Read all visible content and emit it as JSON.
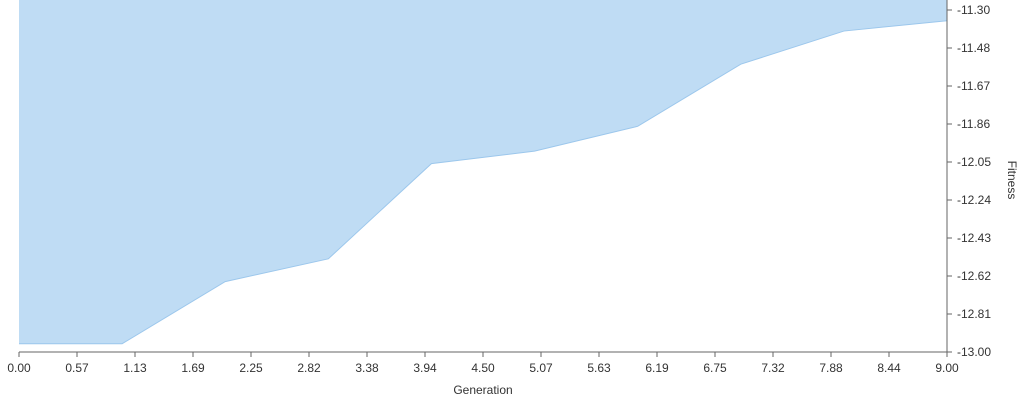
{
  "chart_data": {
    "type": "area",
    "xlabel": "Generation",
    "ylabel": "Fitness",
    "xlim": [
      0,
      9
    ],
    "ylim": [
      -13.0,
      -11.3
    ],
    "y_axis_side": "right",
    "grid": false,
    "fill_direction": "above-line",
    "colors": {
      "fill": "#bfdcf4",
      "stroke": "#9cc7ec",
      "axis": "#666666",
      "text": "#333333"
    },
    "x_ticks": [
      "0.00",
      "0.57",
      "1.13",
      "1.69",
      "2.25",
      "2.82",
      "3.38",
      "3.94",
      "4.50",
      "5.07",
      "5.63",
      "6.19",
      "6.75",
      "7.32",
      "7.88",
      "8.44",
      "9.00"
    ],
    "y_ticks": [
      "-11.30",
      "-11.48",
      "-11.67",
      "-11.86",
      "-12.05",
      "-12.24",
      "-12.43",
      "-12.62",
      "-12.81",
      "-13.00"
    ],
    "series": [
      {
        "x": [
          0,
          1,
          2,
          3,
          4,
          5,
          6,
          7,
          8,
          9
        ],
        "values": [
          -12.96,
          -12.96,
          -12.66,
          -12.55,
          -12.09,
          -12.03,
          -11.91,
          -11.61,
          -11.45,
          -11.4
        ]
      }
    ]
  }
}
